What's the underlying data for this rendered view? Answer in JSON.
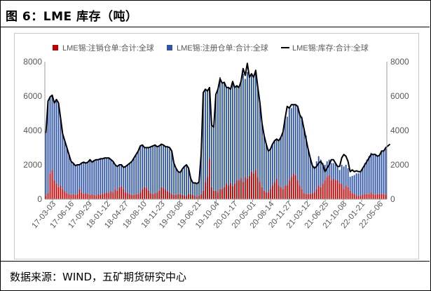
{
  "header": {
    "title": "图 6：LME 库存（吨）"
  },
  "footer": {
    "source": "数据来源：WIND，五矿期货研究中心"
  },
  "colors": {
    "cancelled": "#c00000",
    "registered": "#2f55a4",
    "stock": "#000000"
  },
  "chart_data": {
    "type": "bar",
    "title": "",
    "xlabel": "",
    "ylabel": "",
    "ylim": [
      0,
      8000
    ],
    "yticks": [
      0,
      2000,
      4000,
      6000,
      8000
    ],
    "y2lim": [
      0,
      8000
    ],
    "y2ticks": [
      0,
      2000,
      4000,
      6000,
      8000
    ],
    "legend_position": "top",
    "grid": false,
    "x_tick_labels": [
      "17-03-03",
      "17-06-16",
      "17-09-29",
      "18-01-12",
      "18-04-27",
      "18-08-10",
      "18-11-23",
      "19-03-08",
      "19-06-21",
      "19-10-04",
      "20-01-17",
      "20-05-01",
      "20-08-14",
      "20-11-27",
      "21-03-12",
      "21-06-25",
      "21-10-08",
      "22-01-21",
      "22-05-06"
    ],
    "series": [
      {
        "name": "LME锡:注销仓单:合计:全球",
        "type": "bar",
        "values": [
          200,
          350,
          1500,
          1700,
          1100,
          900,
          700,
          800,
          600,
          450,
          350,
          300,
          250,
          300,
          250,
          300,
          600,
          400,
          300,
          350,
          300,
          250,
          300,
          250,
          200,
          300,
          250,
          300,
          350,
          400,
          350,
          450,
          400,
          600,
          500,
          700,
          750,
          600,
          400,
          350,
          300,
          250,
          250,
          300,
          300,
          400,
          600,
          700,
          650,
          500,
          350,
          300,
          350,
          400,
          500,
          700,
          650,
          550,
          450,
          400,
          300,
          250,
          250,
          300,
          300,
          250,
          200,
          200,
          300,
          300,
          250,
          200,
          150,
          200,
          300,
          500,
          1000,
          1300,
          2350,
          700,
          500,
          500,
          400,
          600,
          600,
          700,
          900,
          800,
          950,
          750,
          900,
          1100,
          1100,
          1250,
          1000,
          1300,
          1200,
          1350,
          1600,
          1500,
          1700,
          1300,
          1000,
          700,
          500,
          400,
          400,
          600,
          800,
          1000,
          1200,
          800,
          700,
          600,
          800,
          800,
          1100,
          1300,
          1500,
          1400,
          1100,
          800,
          600,
          350,
          300,
          300,
          300,
          350,
          400,
          600,
          800,
          700,
          900,
          1100,
          1300,
          1400,
          1100,
          1200,
          1100,
          1100,
          900,
          900,
          600,
          800,
          700,
          500,
          350,
          300,
          200,
          200,
          200,
          250,
          300,
          300,
          300,
          400,
          300,
          250,
          300,
          300,
          300,
          300,
          250
        ]
      },
      {
        "name": "LME锡:注册仓单:合计:全球",
        "type": "bar",
        "values": [
          3650,
          5350,
          4450,
          4350,
          4500,
          4900,
          4900,
          3900,
          3200,
          2950,
          2650,
          2300,
          1950,
          1800,
          1700,
          1700,
          1400,
          1700,
          1850,
          1750,
          1850,
          2050,
          1850,
          2000,
          2100,
          2000,
          2100,
          2050,
          2050,
          2000,
          2050,
          1850,
          1800,
          1400,
          1400,
          1300,
          1250,
          1250,
          1500,
          1650,
          1800,
          1950,
          2150,
          2300,
          2500,
          2700,
          2550,
          2300,
          2350,
          2500,
          2700,
          2800,
          2800,
          2650,
          2600,
          2500,
          2500,
          2500,
          2600,
          2600,
          2500,
          1850,
          1550,
          1300,
          1250,
          1500,
          1700,
          1800,
          1500,
          900,
          750,
          750,
          750,
          800,
          2300,
          5700,
          5400,
          5000,
          4150,
          3600,
          3700,
          5600,
          6000,
          6500,
          6150,
          6100,
          5600,
          5700,
          5450,
          6100,
          5600,
          5500,
          5400,
          5600,
          6300,
          5700,
          6200,
          5800,
          5700,
          5600,
          5800,
          5200,
          4600,
          3700,
          3200,
          2800,
          2400,
          2300,
          2400,
          2400,
          2300,
          2600,
          2900,
          3300,
          3900,
          4000,
          4200,
          4000,
          4000,
          4100,
          4300,
          4100,
          4200,
          3800,
          3400,
          2600,
          2100,
          1600,
          1500,
          1600,
          1700,
          1600,
          1200,
          900,
          900,
          900,
          1000,
          900,
          1000,
          800,
          800,
          1100,
          1300,
          1200,
          1100,
          800,
          1000,
          1100,
          1300,
          1300,
          1400,
          1600,
          1800,
          2000,
          2200,
          2300,
          2300,
          2300,
          2200,
          2300,
          2500,
          2500,
          2700,
          2800,
          2900
        ]
      },
      {
        "name": "LME锡:库存:合计:全球",
        "type": "line",
        "values": [
          3850,
          5700,
          5950,
          6050,
          5600,
          5800,
          5600,
          4700,
          3800,
          3400,
          3000,
          2600,
          2200,
          2100,
          1950,
          2000,
          2000,
          2100,
          2150,
          2100,
          2150,
          2300,
          2150,
          2250,
          2300,
          2300,
          2350,
          2350,
          2400,
          2400,
          2400,
          2300,
          2200,
          2000,
          1900,
          2000,
          2000,
          1850,
          1900,
          2000,
          2100,
          2200,
          2400,
          2600,
          2800,
          3100,
          3150,
          3000,
          3000,
          3000,
          3050,
          3100,
          3150,
          3050,
          3100,
          3200,
          3150,
          3050,
          3050,
          3000,
          2800,
          2100,
          1800,
          1600,
          1550,
          1750,
          1900,
          2000,
          1800,
          1200,
          950,
          950,
          900,
          1000,
          2600,
          6200,
          6400,
          6300,
          6500,
          4300,
          4200,
          6100,
          6400,
          7000,
          6750,
          6800,
          6500,
          6500,
          6400,
          6850,
          6500,
          6600,
          6500,
          6850,
          7600,
          7200,
          7900,
          7100,
          7300,
          7100,
          7500,
          6500,
          5600,
          4400,
          3700,
          3200,
          2800,
          2900,
          3200,
          3400,
          3500,
          3400,
          3600,
          3900,
          4700,
          5400,
          5300,
          5500,
          5500,
          5500,
          5400,
          4900,
          4700,
          4100,
          3500,
          2900,
          2400,
          1950,
          1800,
          1900,
          2100,
          2200,
          2000,
          1600,
          1800,
          2000,
          2300,
          2300,
          2100,
          1900,
          1900,
          2400,
          2600,
          2500,
          2200,
          1600,
          1700,
          1600,
          1650,
          1600,
          1600,
          1800,
          2000,
          2200,
          2400,
          2600,
          2600,
          2600,
          2500,
          2550,
          2800,
          2800,
          3000,
          3100,
          3200
        ]
      }
    ]
  }
}
